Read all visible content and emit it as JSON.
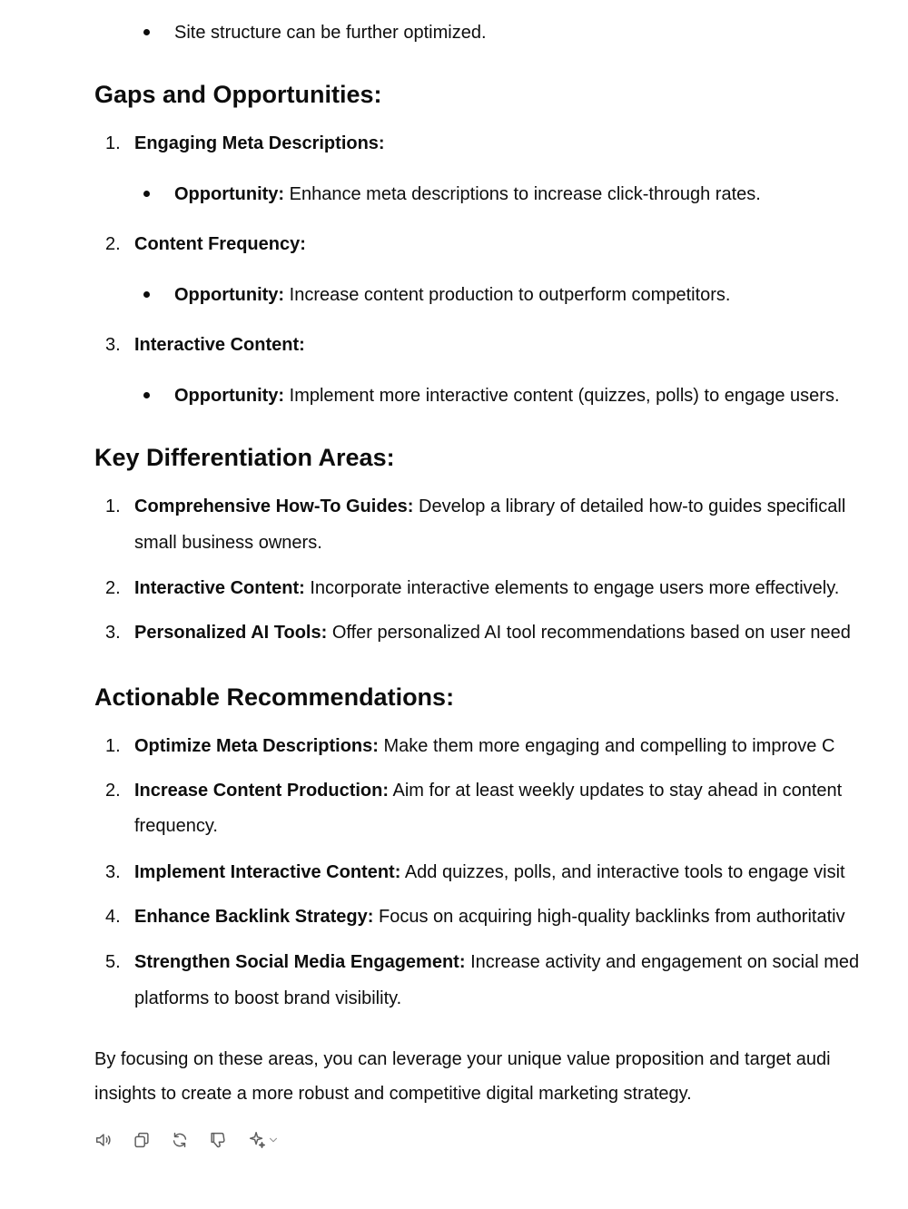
{
  "top_bullet": "Site structure can be further optimized.",
  "gaps": {
    "heading": "Gaps and Opportunities:",
    "items": [
      {
        "num": "1.",
        "title": "Engaging Meta Descriptions:",
        "sub_label": "Opportunity:",
        "sub_text": " Enhance meta descriptions to increase click-through rates."
      },
      {
        "num": "2.",
        "title": "Content Frequency:",
        "sub_label": "Opportunity:",
        "sub_text": " Increase content production to outperform competitors."
      },
      {
        "num": "3.",
        "title": "Interactive Content:",
        "sub_label": "Opportunity:",
        "sub_text": " Implement more interactive content (quizzes, polls) to engage users."
      }
    ]
  },
  "differentiation": {
    "heading": "Key Differentiation Areas:",
    "items": [
      {
        "num": "1.",
        "label": "Comprehensive How-To Guides:",
        "text": " Develop a library of detailed how-to guides specificall",
        "cont": "small business owners."
      },
      {
        "num": "2.",
        "label": "Interactive Content:",
        "text": " Incorporate interactive elements to engage users more effectively."
      },
      {
        "num": "3.",
        "label": "Personalized AI Tools:",
        "text": " Offer personalized AI tool recommendations based on user need"
      }
    ]
  },
  "recommendations": {
    "heading": "Actionable Recommendations:",
    "items": [
      {
        "num": "1.",
        "label": "Optimize Meta Descriptions:",
        "text": " Make them more engaging and compelling to improve C"
      },
      {
        "num": "2.",
        "label": "Increase Content Production:",
        "text": " Aim for at least weekly updates to stay ahead in content",
        "cont": "frequency."
      },
      {
        "num": "3.",
        "label": "Implement Interactive Content:",
        "text": " Add quizzes, polls, and interactive tools to engage visit"
      },
      {
        "num": "4.",
        "label": "Enhance Backlink Strategy:",
        "text": " Focus on acquiring high-quality backlinks from authoritativ"
      },
      {
        "num": "5.",
        "label": "Strengthen Social Media Engagement:",
        "text": " Increase activity and engagement on social med",
        "cont": "platforms to boost brand visibility."
      }
    ]
  },
  "closing": {
    "line1": "By focusing on these areas, you can leverage your unique value proposition and target audi",
    "line2": "insights to create a more robust and competitive digital marketing strategy."
  },
  "actions": [
    "speaker-icon",
    "copy-icon",
    "regenerate-icon",
    "thumbs-down-icon",
    "sparkle-model-icon"
  ]
}
